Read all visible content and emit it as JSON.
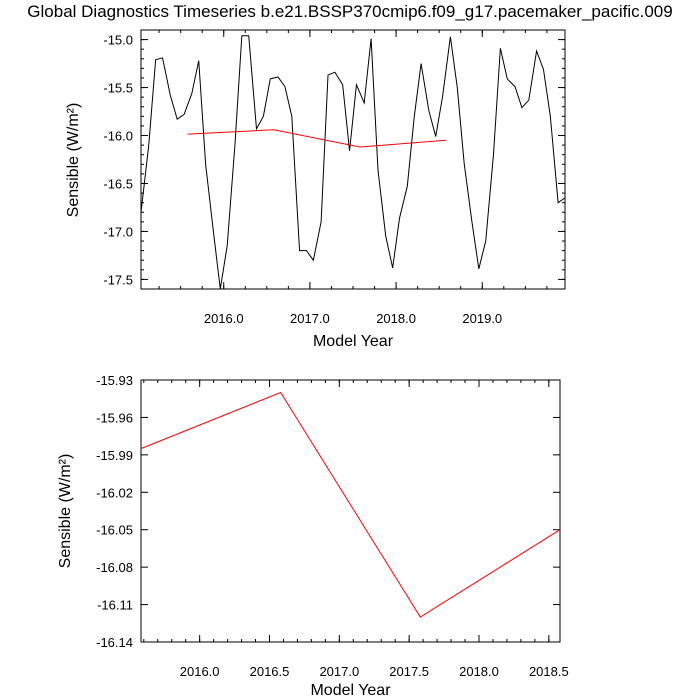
{
  "title": "Global Diagnostics Timeseries b.e21.BSSP370cmip6.f09_g17.pacemaker_pacific.009",
  "colors": {
    "monthly": "#000000",
    "annual": "#ff0000"
  },
  "chart_data": [
    {
      "type": "line",
      "xlabel": "Model Year",
      "ylabel": "Sensible (W/m²)",
      "xlim": [
        2015.04,
        2019.96
      ],
      "ylim": [
        -17.6,
        -14.9
      ],
      "xticks": [
        2016.0,
        2017.0,
        2018.0,
        2019.0
      ],
      "xtick_labels": [
        "2016.0",
        "2017.0",
        "2018.0",
        "2019.0"
      ],
      "yticks": [
        -15.0,
        -15.5,
        -16.0,
        -16.5,
        -17.0,
        -17.5
      ],
      "ytick_labels": [
        "-15.0",
        "-15.5",
        "-16.0",
        "-16.5",
        "-17.0",
        "-17.5"
      ],
      "series": [
        {
          "color": "#000000",
          "x": [
            2015.04,
            2015.13,
            2015.21,
            2015.29,
            2015.38,
            2015.46,
            2015.54,
            2015.63,
            2015.71,
            2015.79,
            2015.88,
            2015.96,
            2016.04,
            2016.13,
            2016.21,
            2016.29,
            2016.38,
            2016.46,
            2016.54,
            2016.63,
            2016.71,
            2016.79,
            2016.88,
            2016.96,
            2017.04,
            2017.13,
            2017.21,
            2017.29,
            2017.38,
            2017.46,
            2017.54,
            2017.63,
            2017.71,
            2017.79,
            2017.88,
            2017.96,
            2018.04,
            2018.13,
            2018.21,
            2018.29,
            2018.38,
            2018.46,
            2018.54,
            2018.63,
            2018.71,
            2018.79,
            2018.88,
            2018.96,
            2019.04,
            2019.13,
            2019.21,
            2019.29,
            2019.38,
            2019.46,
            2019.54,
            2019.63,
            2019.71,
            2019.79,
            2019.88,
            2019.96
          ],
          "y": [
            -16.8,
            -16.1,
            -15.21,
            -15.19,
            -15.58,
            -15.83,
            -15.78,
            -15.56,
            -15.22,
            -16.3,
            -17.0,
            -17.6,
            -17.15,
            -16.1,
            -14.96,
            -14.96,
            -15.93,
            -15.8,
            -15.41,
            -15.39,
            -15.49,
            -15.8,
            -17.2,
            -17.2,
            -17.3,
            -16.9,
            -15.37,
            -15.34,
            -15.47,
            -16.16,
            -15.47,
            -15.66,
            -14.99,
            -16.36,
            -17.05,
            -17.38,
            -16.86,
            -16.53,
            -15.81,
            -15.25,
            -15.74,
            -16.01,
            -15.59,
            -14.97,
            -15.5,
            -16.29,
            -16.9,
            -17.39,
            -17.1,
            -16.2,
            -15.09,
            -15.41,
            -15.49,
            -15.71,
            -15.63,
            -15.12,
            -15.31,
            -15.8,
            -16.7,
            -16.65
          ]
        },
        {
          "color": "#ff0000",
          "x": [
            2015.58,
            2016.58,
            2017.58,
            2018.58
          ],
          "y": [
            -15.985,
            -15.94,
            -16.12,
            -16.05
          ]
        }
      ]
    },
    {
      "type": "line",
      "xlabel": "Model Year",
      "ylabel": "Sensible (W/m²)",
      "xlim": [
        2015.58,
        2018.58
      ],
      "ylim": [
        -16.14,
        -15.93
      ],
      "xticks": [
        2016.0,
        2016.5,
        2017.0,
        2017.5,
        2018.0,
        2018.5
      ],
      "xtick_labels": [
        "2016.0",
        "2016.5",
        "2017.0",
        "2017.5",
        "2018.0",
        "2018.5"
      ],
      "yticks": [
        -15.93,
        -15.96,
        -15.99,
        -16.02,
        -16.05,
        -16.08,
        -16.11,
        -16.14
      ],
      "ytick_labels": [
        "-15.93",
        "-15.96",
        "-15.99",
        "-16.02",
        "-16.05",
        "-16.08",
        "-16.11",
        "-16.14"
      ],
      "series": [
        {
          "color": "#ff0000",
          "x": [
            2015.58,
            2016.58,
            2017.58,
            2018.58
          ],
          "y": [
            -15.985,
            -15.94,
            -16.12,
            -16.05
          ]
        }
      ]
    }
  ]
}
